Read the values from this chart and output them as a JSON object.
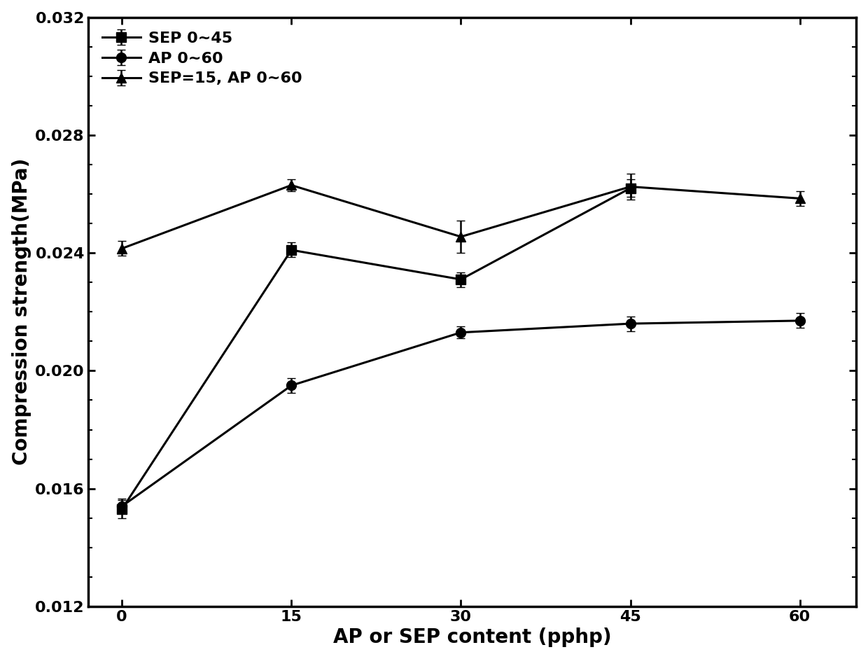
{
  "series": [
    {
      "label": "SEP 0~45",
      "x": [
        0,
        15,
        30,
        45
      ],
      "y": [
        0.0153,
        0.0241,
        0.0231,
        0.0262
      ],
      "yerr": [
        0.0003,
        0.00025,
        0.00025,
        0.0003
      ],
      "marker": "s",
      "color": "#000000"
    },
    {
      "label": "AP 0~60",
      "x": [
        0,
        15,
        30,
        45,
        60
      ],
      "y": [
        0.0154,
        0.0195,
        0.0213,
        0.0216,
        0.0217
      ],
      "yerr": [
        0.00025,
        0.00025,
        0.0002,
        0.00025,
        0.00025
      ],
      "marker": "o",
      "color": "#000000"
    },
    {
      "label": "SEP=15, AP 0~60",
      "x": [
        0,
        15,
        30,
        45,
        60
      ],
      "y": [
        0.02415,
        0.0263,
        0.02455,
        0.02625,
        0.02585
      ],
      "yerr": [
        0.00025,
        0.0002,
        0.00055,
        0.00045,
        0.00025
      ],
      "marker": "^",
      "color": "#000000"
    }
  ],
  "xlabel": "AP or SEP content (pphp)",
  "ylabel": "Compression strength(MPa)",
  "xlim": [
    -3,
    65
  ],
  "ylim": [
    0.012,
    0.032
  ],
  "major_yticks": [
    0.012,
    0.016,
    0.02,
    0.024,
    0.028,
    0.032
  ],
  "minor_yticks": [
    0.013,
    0.014,
    0.015,
    0.017,
    0.018,
    0.019,
    0.021,
    0.022,
    0.023,
    0.025,
    0.026,
    0.027,
    0.029,
    0.03,
    0.031
  ],
  "xticks": [
    0,
    15,
    30,
    45,
    60
  ],
  "linewidth": 2.2,
  "markersize": 10,
  "capsize": 4,
  "legend_fontsize": 16,
  "axis_label_fontsize": 20,
  "tick_fontsize": 16,
  "background_color": "#ffffff"
}
